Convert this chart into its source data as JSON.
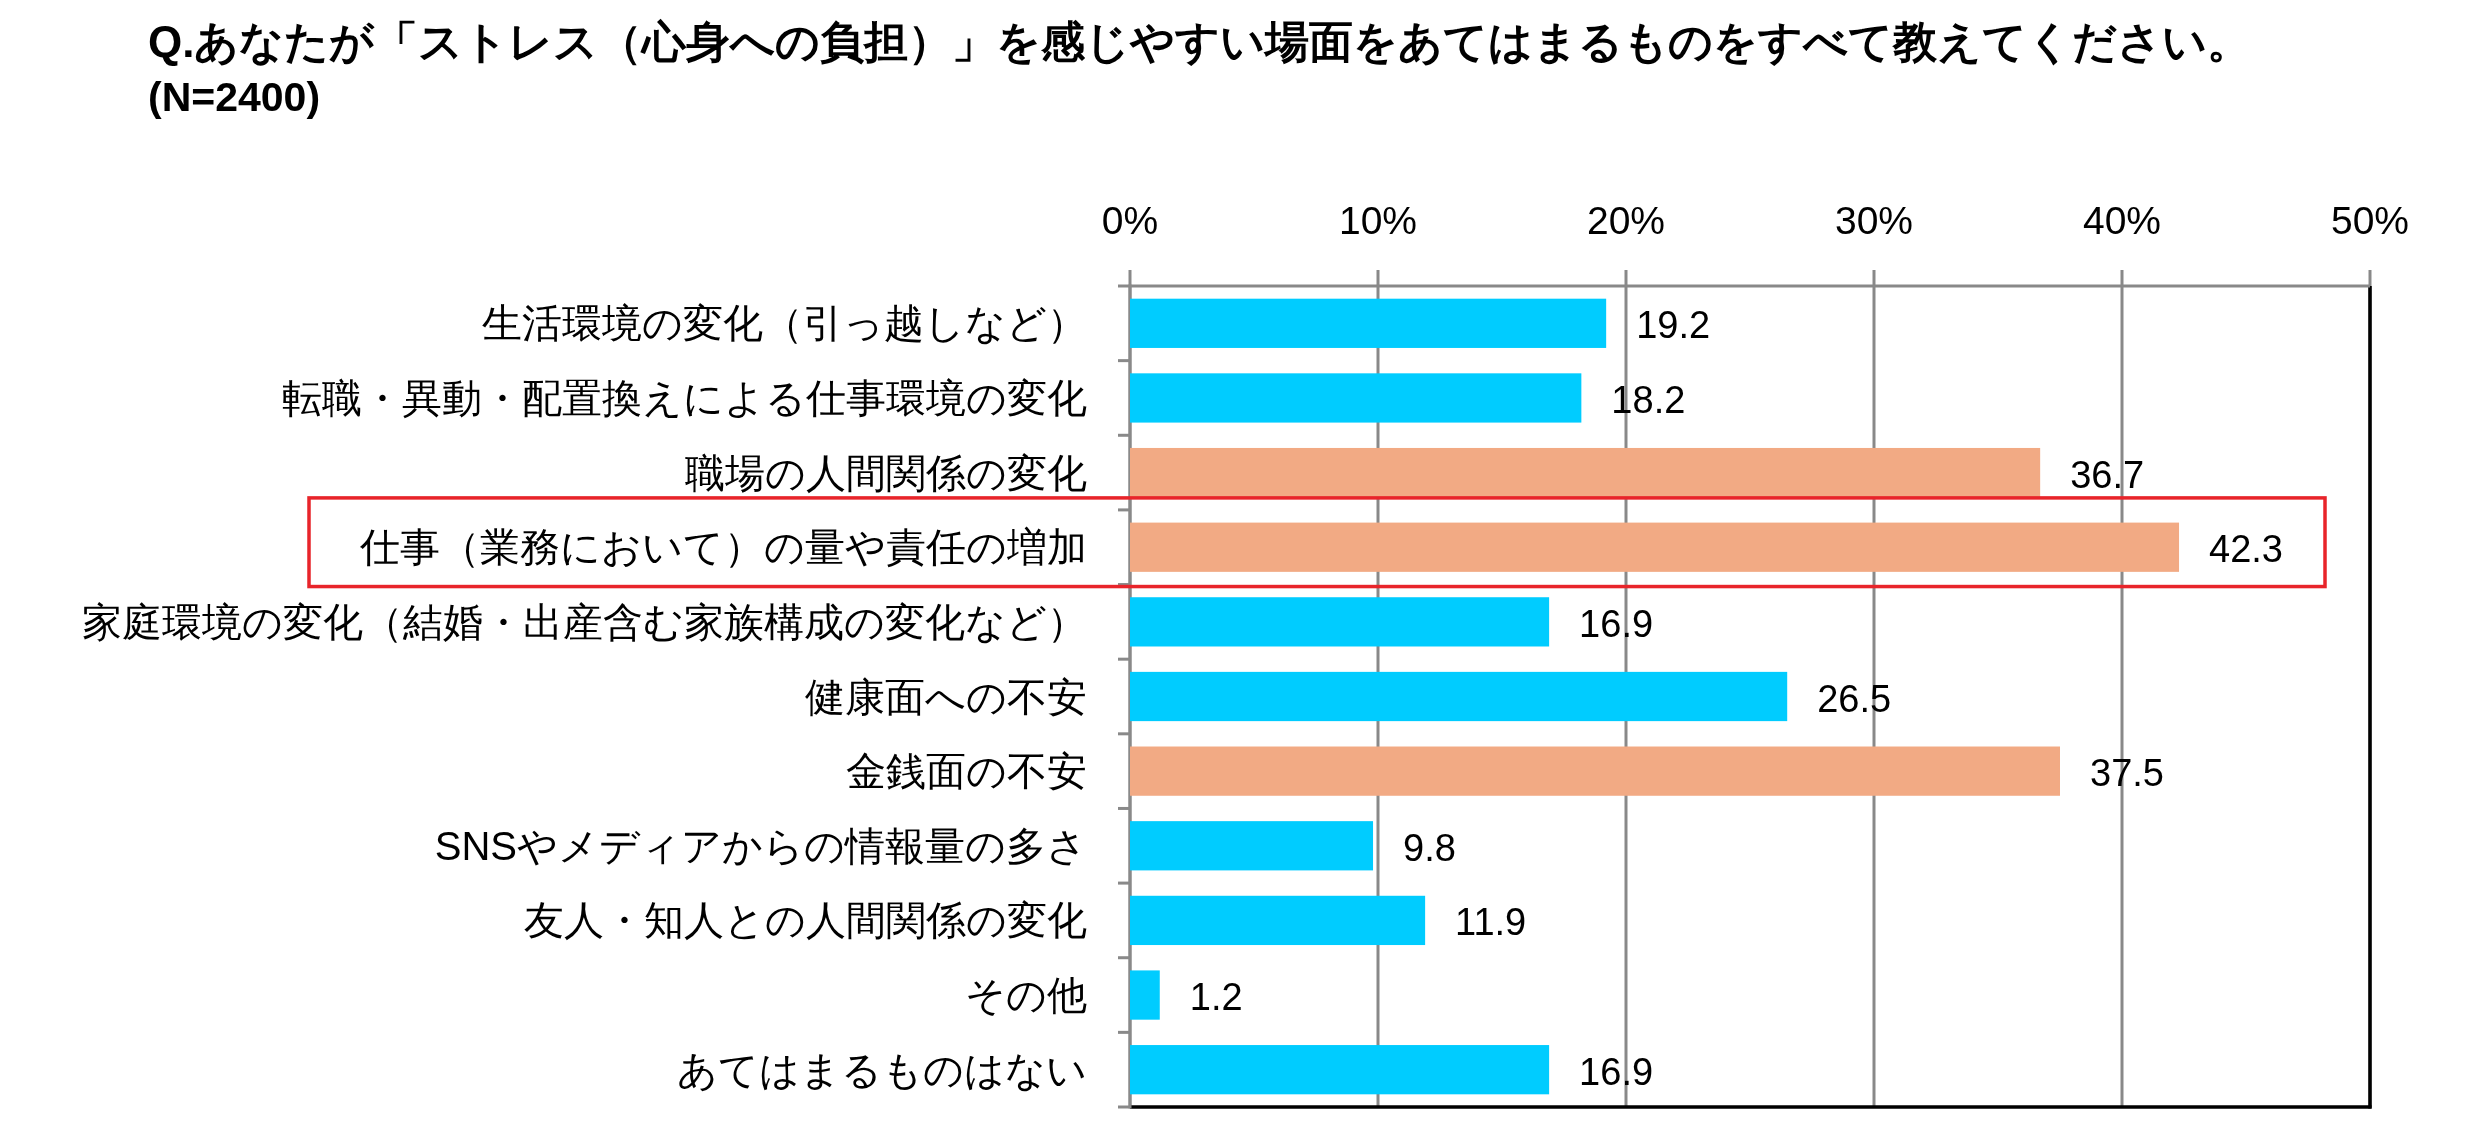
{
  "chart_data": {
    "type": "bar",
    "orientation": "horizontal",
    "title": "Q.あなたが「ストレス（心身への負担）」を感じやすい場面をあてはまるものをすべて教えてください。",
    "subtitle": "(N=2400)",
    "categories": [
      "生活環境の変化（引っ越しなど）",
      "転職・異動・配置換えによる仕事環境の変化",
      "職場の人間関係の変化",
      "仕事（業務において）の量や責任の増加",
      "家庭環境の変化（結婚・出産含む家族構成の変化など）",
      "健康面への不安",
      "金銭面の不安",
      "SNSやメディアからの情報量の多さ",
      "友人・知人との人間関係の変化",
      "その他",
      "あてはまるものはない"
    ],
    "values": [
      19.2,
      18.2,
      36.7,
      42.3,
      16.9,
      26.5,
      37.5,
      9.8,
      11.9,
      1.2,
      16.9
    ],
    "colors": [
      "#00ccff",
      "#00ccff",
      "#f2aa84",
      "#f2aa84",
      "#00ccff",
      "#00ccff",
      "#f2aa84",
      "#00ccff",
      "#00ccff",
      "#00ccff",
      "#00ccff"
    ],
    "data_labels": true,
    "xlim": [
      0,
      50
    ],
    "xticks": [
      {
        "value": 0,
        "label": "0%"
      },
      {
        "value": 10,
        "label": "10%"
      },
      {
        "value": 20,
        "label": "20%"
      },
      {
        "value": 30,
        "label": "30%"
      },
      {
        "value": 40,
        "label": "40%"
      },
      {
        "value": 50,
        "label": "50%"
      }
    ],
    "grid": "x"
  }
}
